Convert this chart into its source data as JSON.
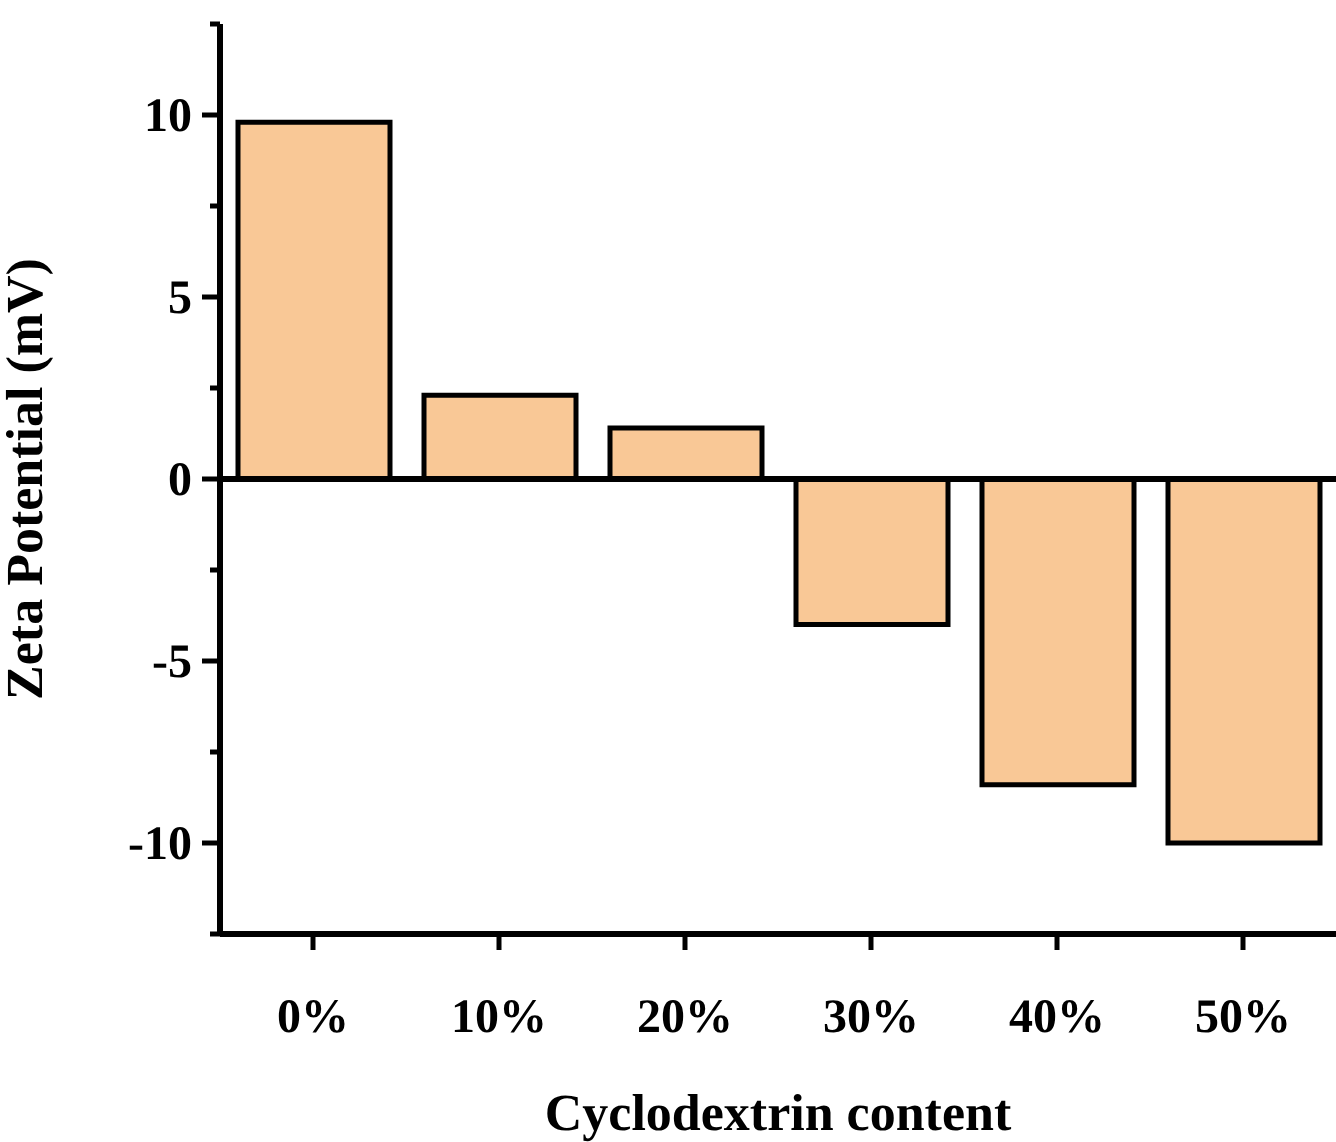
{
  "chart_data": {
    "type": "bar",
    "xlabel": "Cyclodextrin content",
    "ylabel": "Zeta Potential (mV)",
    "categories": [
      "0%",
      "10%",
      "20%",
      "30%",
      "40%",
      "50%"
    ],
    "series": [
      {
        "color": "#f9c896",
        "values": [
          9.8,
          2.3,
          1.4,
          -4.0,
          -8.4,
          -10.0
        ]
      }
    ],
    "ylim": [
      -12.5,
      12.5
    ],
    "yticks": [
      {
        "value": -12.5,
        "label": null
      },
      -10,
      {
        "value": -7.5,
        "label": null
      },
      -5,
      {
        "value": -2.5,
        "label": null
      },
      0,
      {
        "value": 2.5,
        "label": null
      },
      5,
      {
        "value": 7.5,
        "label": null
      },
      10,
      {
        "value": 12.5,
        "label": null
      }
    ],
    "ref_lines": [
      {
        "axis": "y",
        "value": 0,
        "color": "#000000"
      }
    ],
    "grid": false,
    "legend": false
  }
}
